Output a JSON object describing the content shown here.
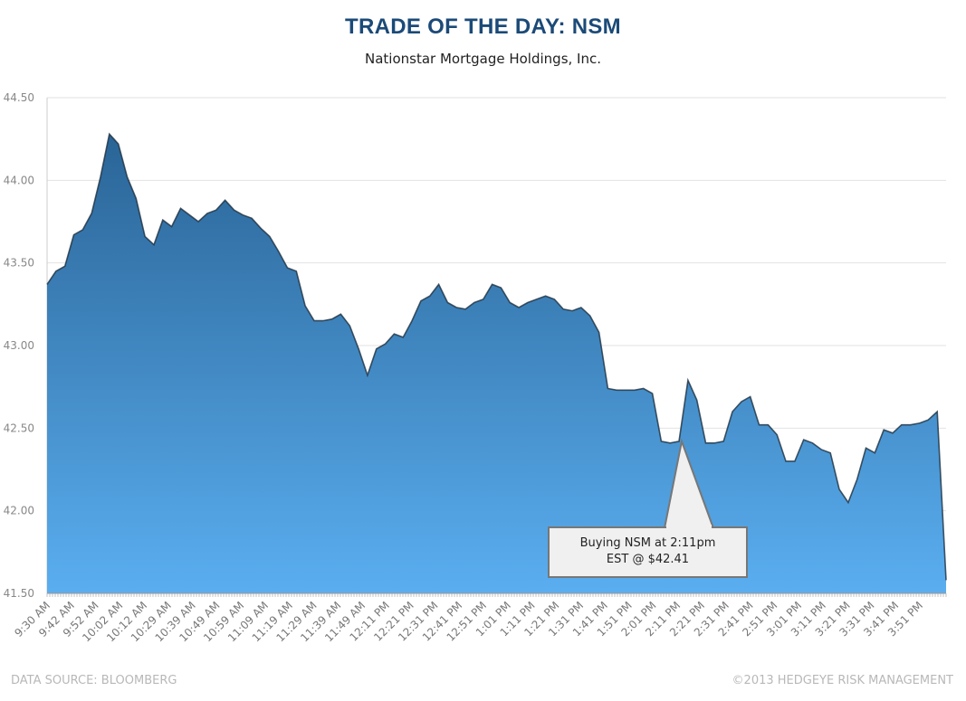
{
  "chart_data": {
    "type": "area",
    "title": "TRADE OF THE DAY: NSM",
    "subtitle": "Nationstar Mortgage Holdings, Inc.",
    "xlabel": "",
    "ylabel": "",
    "ylim": [
      41.5,
      44.5
    ],
    "yticks": [
      "41.50",
      "42.00",
      "42.50",
      "43.00",
      "43.50",
      "44.00",
      "44.50"
    ],
    "grid": true,
    "xtick_labels": [
      "9:30 AM",
      "9:42 AM",
      "9:52 AM",
      "10:02 AM",
      "10:12 AM",
      "10:29 AM",
      "10:39 AM",
      "10:49 AM",
      "10:59 AM",
      "11:09 AM",
      "11:19 AM",
      "11:29 AM",
      "11:39 AM",
      "11:49 AM",
      "12:11 PM",
      "12:21 PM",
      "12:31 PM",
      "12:41 PM",
      "12:51 PM",
      "1:01 PM",
      "1:11 PM",
      "1:21 PM",
      "1:31 PM",
      "1:41 PM",
      "1:51 PM",
      "2:01 PM",
      "2:11 PM",
      "2:21 PM",
      "2:31 PM",
      "2:41 PM",
      "2:51 PM",
      "3:01 PM",
      "3:11 PM",
      "3:21 PM",
      "3:31 PM",
      "3:41 PM",
      "3:51 PM"
    ],
    "values": [
      43.37,
      43.45,
      43.48,
      43.67,
      43.7,
      43.8,
      44.02,
      44.28,
      44.22,
      44.02,
      43.89,
      43.66,
      43.61,
      43.76,
      43.72,
      43.83,
      43.79,
      43.75,
      43.8,
      43.82,
      43.88,
      43.82,
      43.79,
      43.77,
      43.71,
      43.66,
      43.57,
      43.47,
      43.45,
      43.24,
      43.15,
      43.15,
      43.16,
      43.19,
      43.12,
      42.98,
      42.82,
      42.98,
      43.01,
      43.07,
      43.05,
      43.15,
      43.27,
      43.3,
      43.37,
      43.26,
      43.23,
      43.22,
      43.26,
      43.28,
      43.37,
      43.35,
      43.26,
      43.23,
      43.26,
      43.28,
      43.3,
      43.28,
      43.22,
      43.21,
      43.23,
      43.18,
      43.08,
      42.74,
      42.73,
      42.73,
      42.73,
      42.74,
      42.71,
      42.42,
      42.41,
      42.42,
      42.79,
      42.67,
      42.41,
      42.41,
      42.42,
      42.6,
      42.66,
      42.69,
      42.52,
      42.52,
      42.46,
      42.3,
      42.3,
      42.43,
      42.41,
      42.37,
      42.35,
      42.13,
      42.05,
      42.19,
      42.38,
      42.35,
      42.49,
      42.47,
      42.52,
      42.52,
      42.53,
      42.55,
      42.6,
      41.58
    ],
    "annotation": {
      "line1": "Buying NSM at 2:11pm",
      "line2": "EST @ $42.41",
      "time": "2:11 PM",
      "price": 42.41
    },
    "colors": {
      "fill_top": "#2a6496",
      "fill_bottom": "#5aaef0",
      "line": "#1d2f3f",
      "title": "#1b4a78"
    }
  },
  "footer": {
    "source": "DATA SOURCE: BLOOMBERG",
    "copyright": "©2013 HEDGEYE RISK MANAGEMENT"
  }
}
